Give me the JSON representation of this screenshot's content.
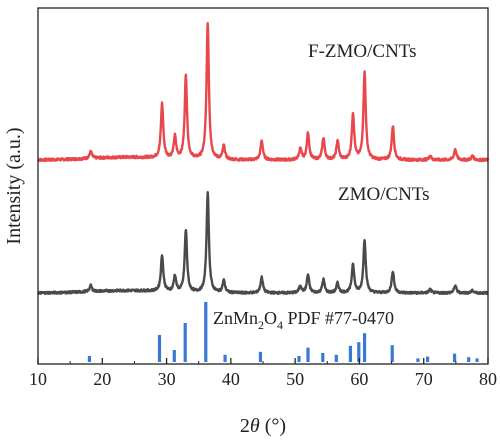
{
  "chart_data": {
    "type": "line",
    "xlabel": "2θ (°)",
    "ylabel": "Intensity (a.u.)",
    "xlim": [
      10,
      80
    ],
    "xticks": [
      10,
      20,
      30,
      40,
      50,
      60,
      70,
      80
    ],
    "yticks_shown": false,
    "grid": false,
    "peak_width_deg": 0.22,
    "series": [
      {
        "name": "F-ZMO/CNTs",
        "color": "#e8484b",
        "baseline": 0.08,
        "peaks": [
          {
            "x": 18.2,
            "h": 0.05
          },
          {
            "x": 29.3,
            "h": 0.4
          },
          {
            "x": 31.3,
            "h": 0.16
          },
          {
            "x": 33.0,
            "h": 0.61
          },
          {
            "x": 36.4,
            "h": 1.0
          },
          {
            "x": 38.9,
            "h": 0.1
          },
          {
            "x": 44.8,
            "h": 0.14
          },
          {
            "x": 50.8,
            "h": 0.08
          },
          {
            "x": 52.0,
            "h": 0.2
          },
          {
            "x": 54.4,
            "h": 0.16
          },
          {
            "x": 56.6,
            "h": 0.14
          },
          {
            "x": 59.0,
            "h": 0.34
          },
          {
            "x": 60.8,
            "h": 0.64
          },
          {
            "x": 65.2,
            "h": 0.25
          },
          {
            "x": 71.0,
            "h": 0.03
          },
          {
            "x": 74.9,
            "h": 0.08
          },
          {
            "x": 77.6,
            "h": 0.03
          }
        ]
      },
      {
        "name": "ZMO/CNTs",
        "color": "#4a4a4a",
        "baseline": 0.07,
        "peaks": [
          {
            "x": 18.2,
            "h": 0.05
          },
          {
            "x": 29.3,
            "h": 0.3
          },
          {
            "x": 31.3,
            "h": 0.13
          },
          {
            "x": 33.0,
            "h": 0.51
          },
          {
            "x": 36.4,
            "h": 0.82
          },
          {
            "x": 38.9,
            "h": 0.1
          },
          {
            "x": 44.8,
            "h": 0.13
          },
          {
            "x": 50.8,
            "h": 0.06
          },
          {
            "x": 52.0,
            "h": 0.15
          },
          {
            "x": 54.4,
            "h": 0.11
          },
          {
            "x": 56.6,
            "h": 0.08
          },
          {
            "x": 59.0,
            "h": 0.24
          },
          {
            "x": 60.8,
            "h": 0.44
          },
          {
            "x": 65.2,
            "h": 0.18
          },
          {
            "x": 71.0,
            "h": 0.03
          },
          {
            "x": 74.9,
            "h": 0.06
          },
          {
            "x": 77.6,
            "h": 0.02
          }
        ]
      }
    ],
    "reference": {
      "label_main": "ZnMn",
      "label_sub1": "2",
      "label_mid": "O",
      "label_sub2": "4",
      "label_tail": " PDF #77-0470",
      "color": "#3a78d4",
      "sticks": [
        {
          "x": 18.0,
          "h": 0.1
        },
        {
          "x": 28.9,
          "h": 0.45
        },
        {
          "x": 31.2,
          "h": 0.2
        },
        {
          "x": 32.9,
          "h": 0.65
        },
        {
          "x": 36.1,
          "h": 1.0
        },
        {
          "x": 39.1,
          "h": 0.12
        },
        {
          "x": 44.6,
          "h": 0.17
        },
        {
          "x": 50.6,
          "h": 0.1
        },
        {
          "x": 52.0,
          "h": 0.24
        },
        {
          "x": 54.3,
          "h": 0.15
        },
        {
          "x": 56.4,
          "h": 0.12
        },
        {
          "x": 58.6,
          "h": 0.27
        },
        {
          "x": 59.9,
          "h": 0.33
        },
        {
          "x": 60.8,
          "h": 0.48
        },
        {
          "x": 65.1,
          "h": 0.28
        },
        {
          "x": 69.1,
          "h": 0.06
        },
        {
          "x": 70.6,
          "h": 0.09
        },
        {
          "x": 74.8,
          "h": 0.14
        },
        {
          "x": 77.0,
          "h": 0.08
        },
        {
          "x": 78.3,
          "h": 0.06
        }
      ]
    }
  }
}
